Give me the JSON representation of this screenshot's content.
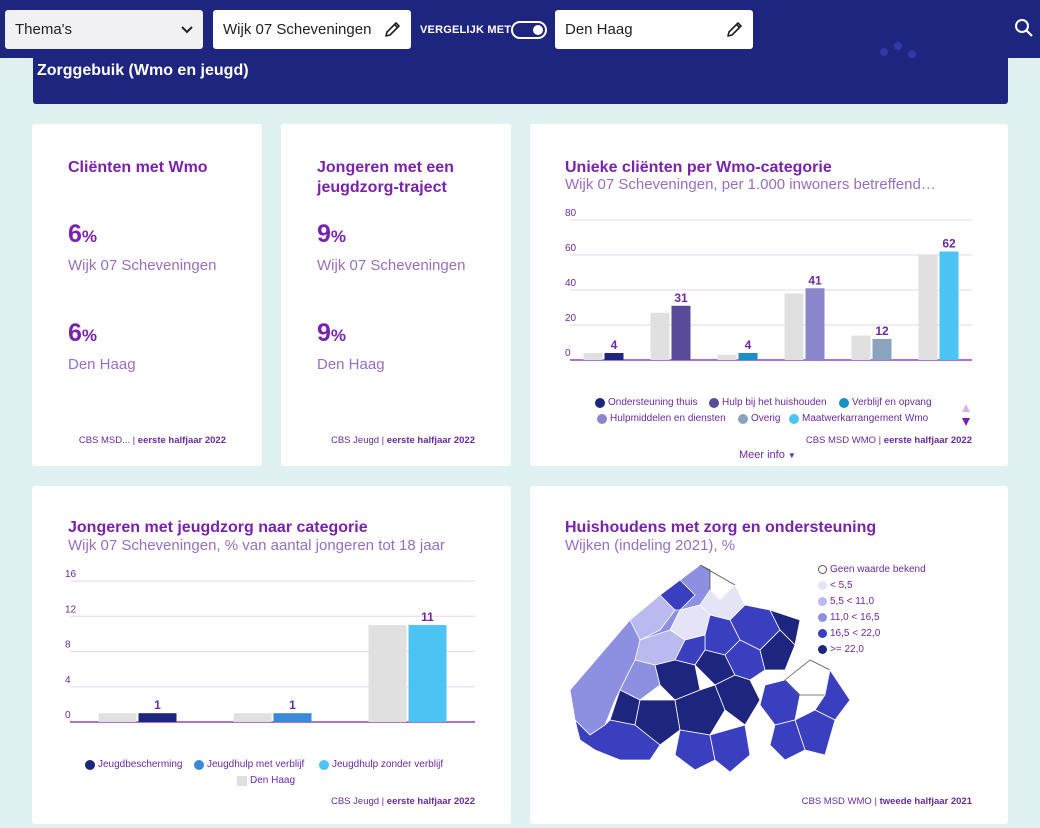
{
  "topbar": {
    "themes_label": "Thema's",
    "area_value": "Wijk 07 Scheveningen",
    "compare_label": "VERGELIJK MET",
    "compare_value": "Den Haag"
  },
  "banner": {
    "title": "Zorggebuik (Wmo en jeugd)"
  },
  "card_wmo": {
    "title": "Cliënten met Wmo",
    "value1": "6",
    "unit1": "%",
    "label1": "Wijk 07 Scheveningen",
    "value2": "6",
    "unit2": "%",
    "label2": "Den Haag",
    "source": "CBS MSD...",
    "source_sep": " | ",
    "period": "eerste halfjaar 2022"
  },
  "card_jeugd": {
    "title": "Jongeren met een jeugdzorg-traject",
    "value1": "9",
    "unit1": "%",
    "label1": "Wijk 07 Scheveningen",
    "value2": "9",
    "unit2": "%",
    "label2": "Den Haag",
    "source": "CBS Jeugd",
    "source_sep": " | ",
    "period": "eerste halfjaar 2022"
  },
  "card_wmo_cat": {
    "title": "Unieke cliënten per Wmo-categorie",
    "subtitle": "Wijk 07 Scheveningen, per 1.000 inwoners betreffend…",
    "source": "CBS MSD WMO",
    "source_sep": " | ",
    "period": "eerste halfjaar 2022",
    "more": "Meer info"
  },
  "card_jeugd_cat": {
    "title": "Jongeren met jeugdzorg naar categorie",
    "subtitle": "Wijk 07 Scheveningen, % van aantal jongeren tot 18 jaar",
    "source": "CBS Jeugd",
    "source_sep": " | ",
    "period": "eerste halfjaar 2022"
  },
  "card_map": {
    "title": "Huishoudens met zorg en ondersteuning",
    "subtitle": "Wijken (indeling 2021), %",
    "source": "CBS MSD WMO",
    "source_sep": " | ",
    "period": "tweede halfjaar 2021",
    "legend": [
      {
        "label": "Geen waarde bekend",
        "color": "#ffffff"
      },
      {
        "label": "< 5,5",
        "color": "#e4e4f6"
      },
      {
        "label": "5,5 < 11,0",
        "color": "#b8baf0"
      },
      {
        "label": "11,0 < 16,5",
        "color": "#8d90e0"
      },
      {
        "label": "16,5 < 22,0",
        "color": "#3a3fc0"
      },
      {
        "label": ">= 22,0",
        "color": "#1e257f"
      }
    ]
  },
  "chart_data": [
    {
      "type": "bar",
      "title": "Unieke cliënten per Wmo-categorie",
      "ylim": [
        0,
        80
      ],
      "yticks": [
        "0",
        "20",
        "40",
        "60",
        "80"
      ],
      "categories": [
        "Ondersteuning thuis",
        "Hulp bij het huishouden",
        "Verblijf en opvang",
        "Hulpmiddelen en diensten",
        "Overig",
        "Maatwerkarrangement Wmo"
      ],
      "series": [
        {
          "name": "Den Haag",
          "values": [
            4,
            27,
            3,
            38,
            14,
            60
          ]
        },
        {
          "name": "Wijk 07 Scheveningen",
          "values": [
            4,
            31,
            4,
            41,
            12,
            62
          ]
        }
      ],
      "labels": [
        "4",
        "31",
        "4",
        "41",
        "12",
        "62"
      ],
      "colors": [
        "#1e257f",
        "#5a4a9a",
        "#1a8fc6",
        "#8a86cc",
        "#8aa4bd",
        "#4bc3f3"
      ]
    },
    {
      "type": "bar",
      "title": "Jongeren met jeugdzorg naar categorie",
      "ylim": [
        0,
        16
      ],
      "yticks": [
        "0",
        "4",
        "8",
        "12",
        "16"
      ],
      "categories": [
        "Jeugdbescherming",
        "Jeugdhulp met verblijf",
        "Jeugdhulp zonder verblijf"
      ],
      "series": [
        {
          "name": "Den Haag",
          "values": [
            1,
            1,
            11
          ]
        },
        {
          "name": "Wijk 07 Scheveningen",
          "values": [
            1,
            1,
            11
          ]
        }
      ],
      "labels": [
        "1",
        "1",
        "11"
      ],
      "colors": [
        "#1e257f",
        "#3b8ad8",
        "#4bc3f3"
      ],
      "comparison_label": "Den Haag"
    }
  ]
}
